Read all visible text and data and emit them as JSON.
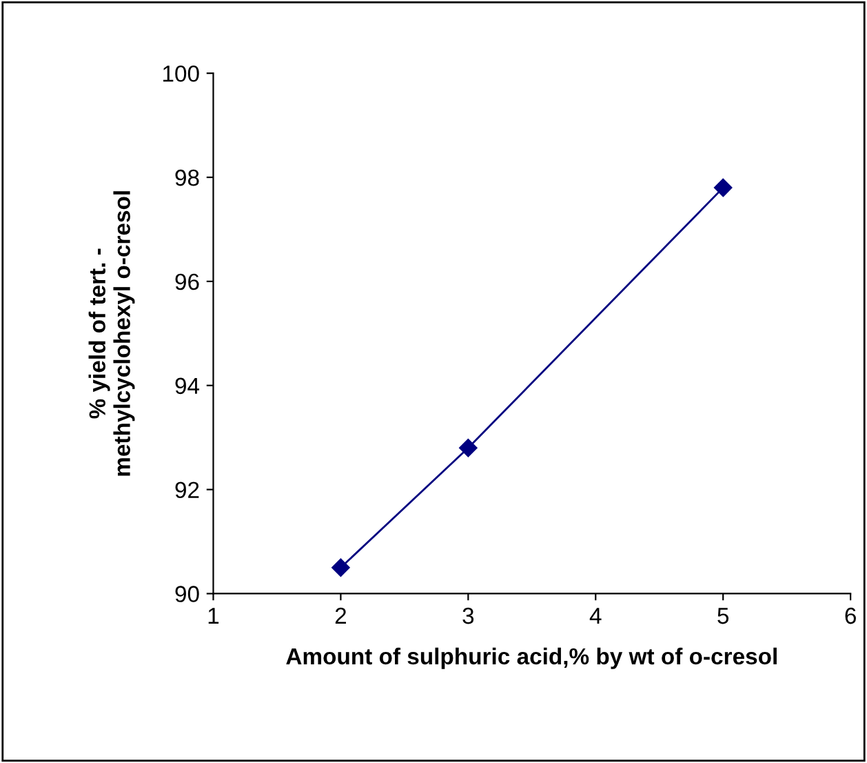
{
  "chart_data": {
    "type": "line",
    "xlabel": "Amount of sulphuric acid,% by wt of o-cresol",
    "ylabel": "% yield of tert. -\nmethylcyclohexyl o-cresol",
    "x": [
      2,
      3,
      5
    ],
    "series": [
      {
        "color": "#000080",
        "values": [
          90.5,
          92.8,
          97.8
        ]
      }
    ],
    "xlim": [
      1,
      6
    ],
    "xticks": [
      1,
      2,
      3,
      4,
      5,
      6
    ],
    "ylim": [
      90,
      100
    ],
    "yticks": [
      90,
      92,
      94,
      96,
      98,
      100
    ],
    "marker": "diamond",
    "line_style": "solid",
    "grid": false,
    "legend": false
  }
}
